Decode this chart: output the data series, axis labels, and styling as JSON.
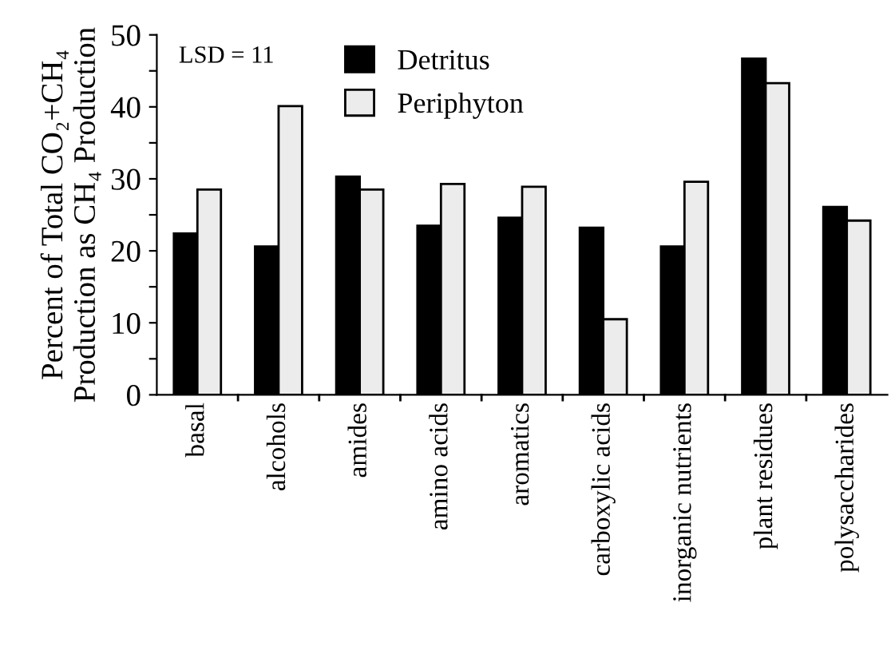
{
  "chart_data": {
    "type": "bar",
    "categories": [
      "basal",
      "alcohols",
      "amides",
      "amino acids",
      "aromatics",
      "carboxylic acids",
      "inorganic nutrients",
      "plant residues",
      "polysaccharides"
    ],
    "series": [
      {
        "name": "Detritus",
        "color": "#000000",
        "values": [
          22.4,
          20.6,
          30.3,
          23.5,
          24.6,
          23.2,
          20.6,
          46.7,
          26.1
        ]
      },
      {
        "name": "Periphyton",
        "color": "#ececec",
        "values": [
          28.5,
          40.1,
          28.5,
          29.3,
          28.9,
          10.5,
          29.6,
          43.3,
          24.2
        ]
      }
    ],
    "ylabel": "Percent of Total CO₂+CH₄\nProduction as CH₄ Production",
    "ylim": [
      0,
      50
    ],
    "yticks": [
      0,
      {
        "value": 5,
        "label": null
      },
      10,
      {
        "value": 15,
        "label": null
      },
      20,
      {
        "value": 25,
        "label": null
      },
      30,
      {
        "value": 35,
        "label": null
      },
      40,
      {
        "value": 45,
        "label": null
      },
      50
    ],
    "annotations": [
      "LSD = 11"
    ],
    "legend": "top",
    "grid": false
  }
}
